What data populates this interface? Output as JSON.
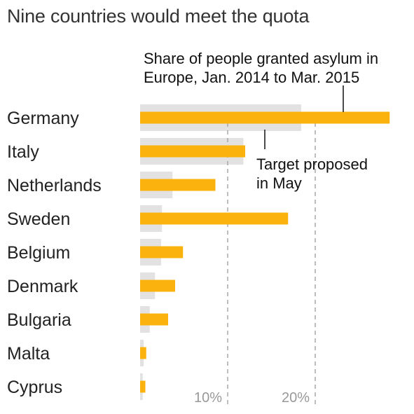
{
  "title": "Nine countries would meet the quota",
  "colors": {
    "target": "#e3e2e2",
    "share": "#fbb10e",
    "grid": "#a8a8a8",
    "leader": "#111111"
  },
  "chart_data": {
    "type": "bar",
    "orientation": "horizontal",
    "title": "Nine countries would meet the quota",
    "categories": [
      "Germany",
      "Italy",
      "Netherlands",
      "Sweden",
      "Belgium",
      "Denmark",
      "Bulgaria",
      "Malta",
      "Cyprus"
    ],
    "series": [
      {
        "key": "target",
        "values": [
          18.4,
          11.8,
          3.7,
          2.5,
          2.4,
          1.7,
          1.1,
          0.4,
          0.3
        ]
      },
      {
        "key": "share",
        "values": [
          28.5,
          12.0,
          8.6,
          16.9,
          4.9,
          4.0,
          3.2,
          0.7,
          0.6
        ]
      }
    ],
    "xlim": [
      0,
      30
    ],
    "xticks": [
      {
        "value": 10,
        "label": "10%"
      },
      {
        "value": 20,
        "label": "20%"
      }
    ],
    "grid": "dashed vertical at ticks",
    "annotations": {
      "share": [
        "Share of people granted asylum in",
        "Europe, Jan. 2014 to Mar. 2015"
      ],
      "target": [
        "Target proposed",
        "in May"
      ]
    }
  }
}
